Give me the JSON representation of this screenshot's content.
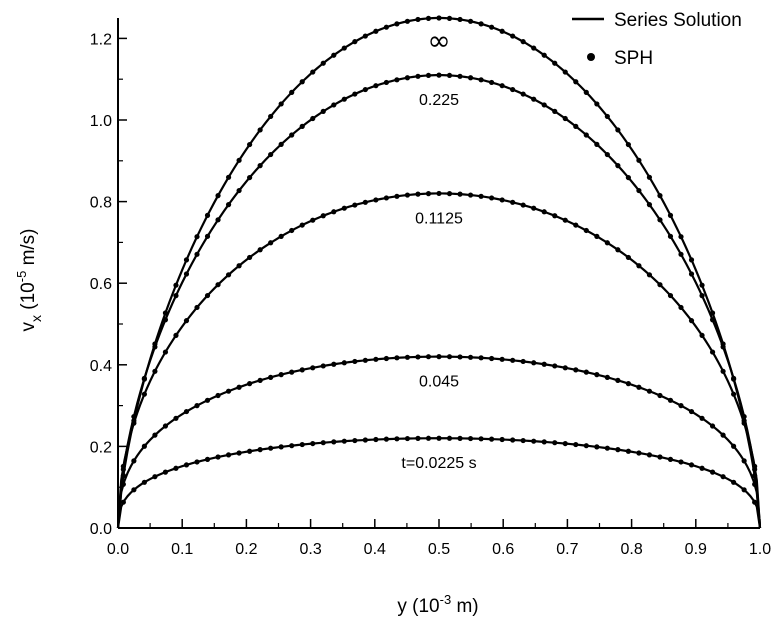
{
  "chart_data": {
    "type": "line",
    "x_axis": {
      "label_main": "y (10",
      "label_sup": "-3",
      "label_end": " m)",
      "range": [
        0.0,
        1.0
      ],
      "ticks": [
        "0.0",
        "0.1",
        "0.2",
        "0.3",
        "0.4",
        "0.5",
        "0.6",
        "0.7",
        "0.8",
        "0.9",
        "1.0"
      ],
      "tick_values": [
        0.0,
        0.1,
        0.2,
        0.3,
        0.4,
        0.5,
        0.6,
        0.7,
        0.8,
        0.9,
        1.0
      ]
    },
    "y_axis": {
      "label_main": "v",
      "label_sub": "x",
      "label_mid": "  (10",
      "label_sup": "-5",
      "label_end": " m/s)",
      "range": [
        0.0,
        1.25
      ],
      "ticks": [
        "0.0",
        "0.2",
        "0.4",
        "0.6",
        "0.8",
        "1.0",
        "1.2"
      ],
      "tick_values": [
        0.0,
        0.2,
        0.4,
        0.6,
        0.8,
        1.0,
        1.2
      ]
    },
    "legend": {
      "position": "top-right",
      "line_label": "Series Solution",
      "marker_label": "SPH"
    },
    "curves": [
      {
        "label": "∞",
        "peak": 1.25
      },
      {
        "label": "0.225",
        "peak": 1.11
      },
      {
        "label": "0.1125",
        "peak": 0.82
      },
      {
        "label": "0.045",
        "peak": 0.42
      },
      {
        "label": "t=0.0225 s",
        "peak": 0.22
      }
    ],
    "sph_points_per_curve": 61,
    "grid": false
  }
}
